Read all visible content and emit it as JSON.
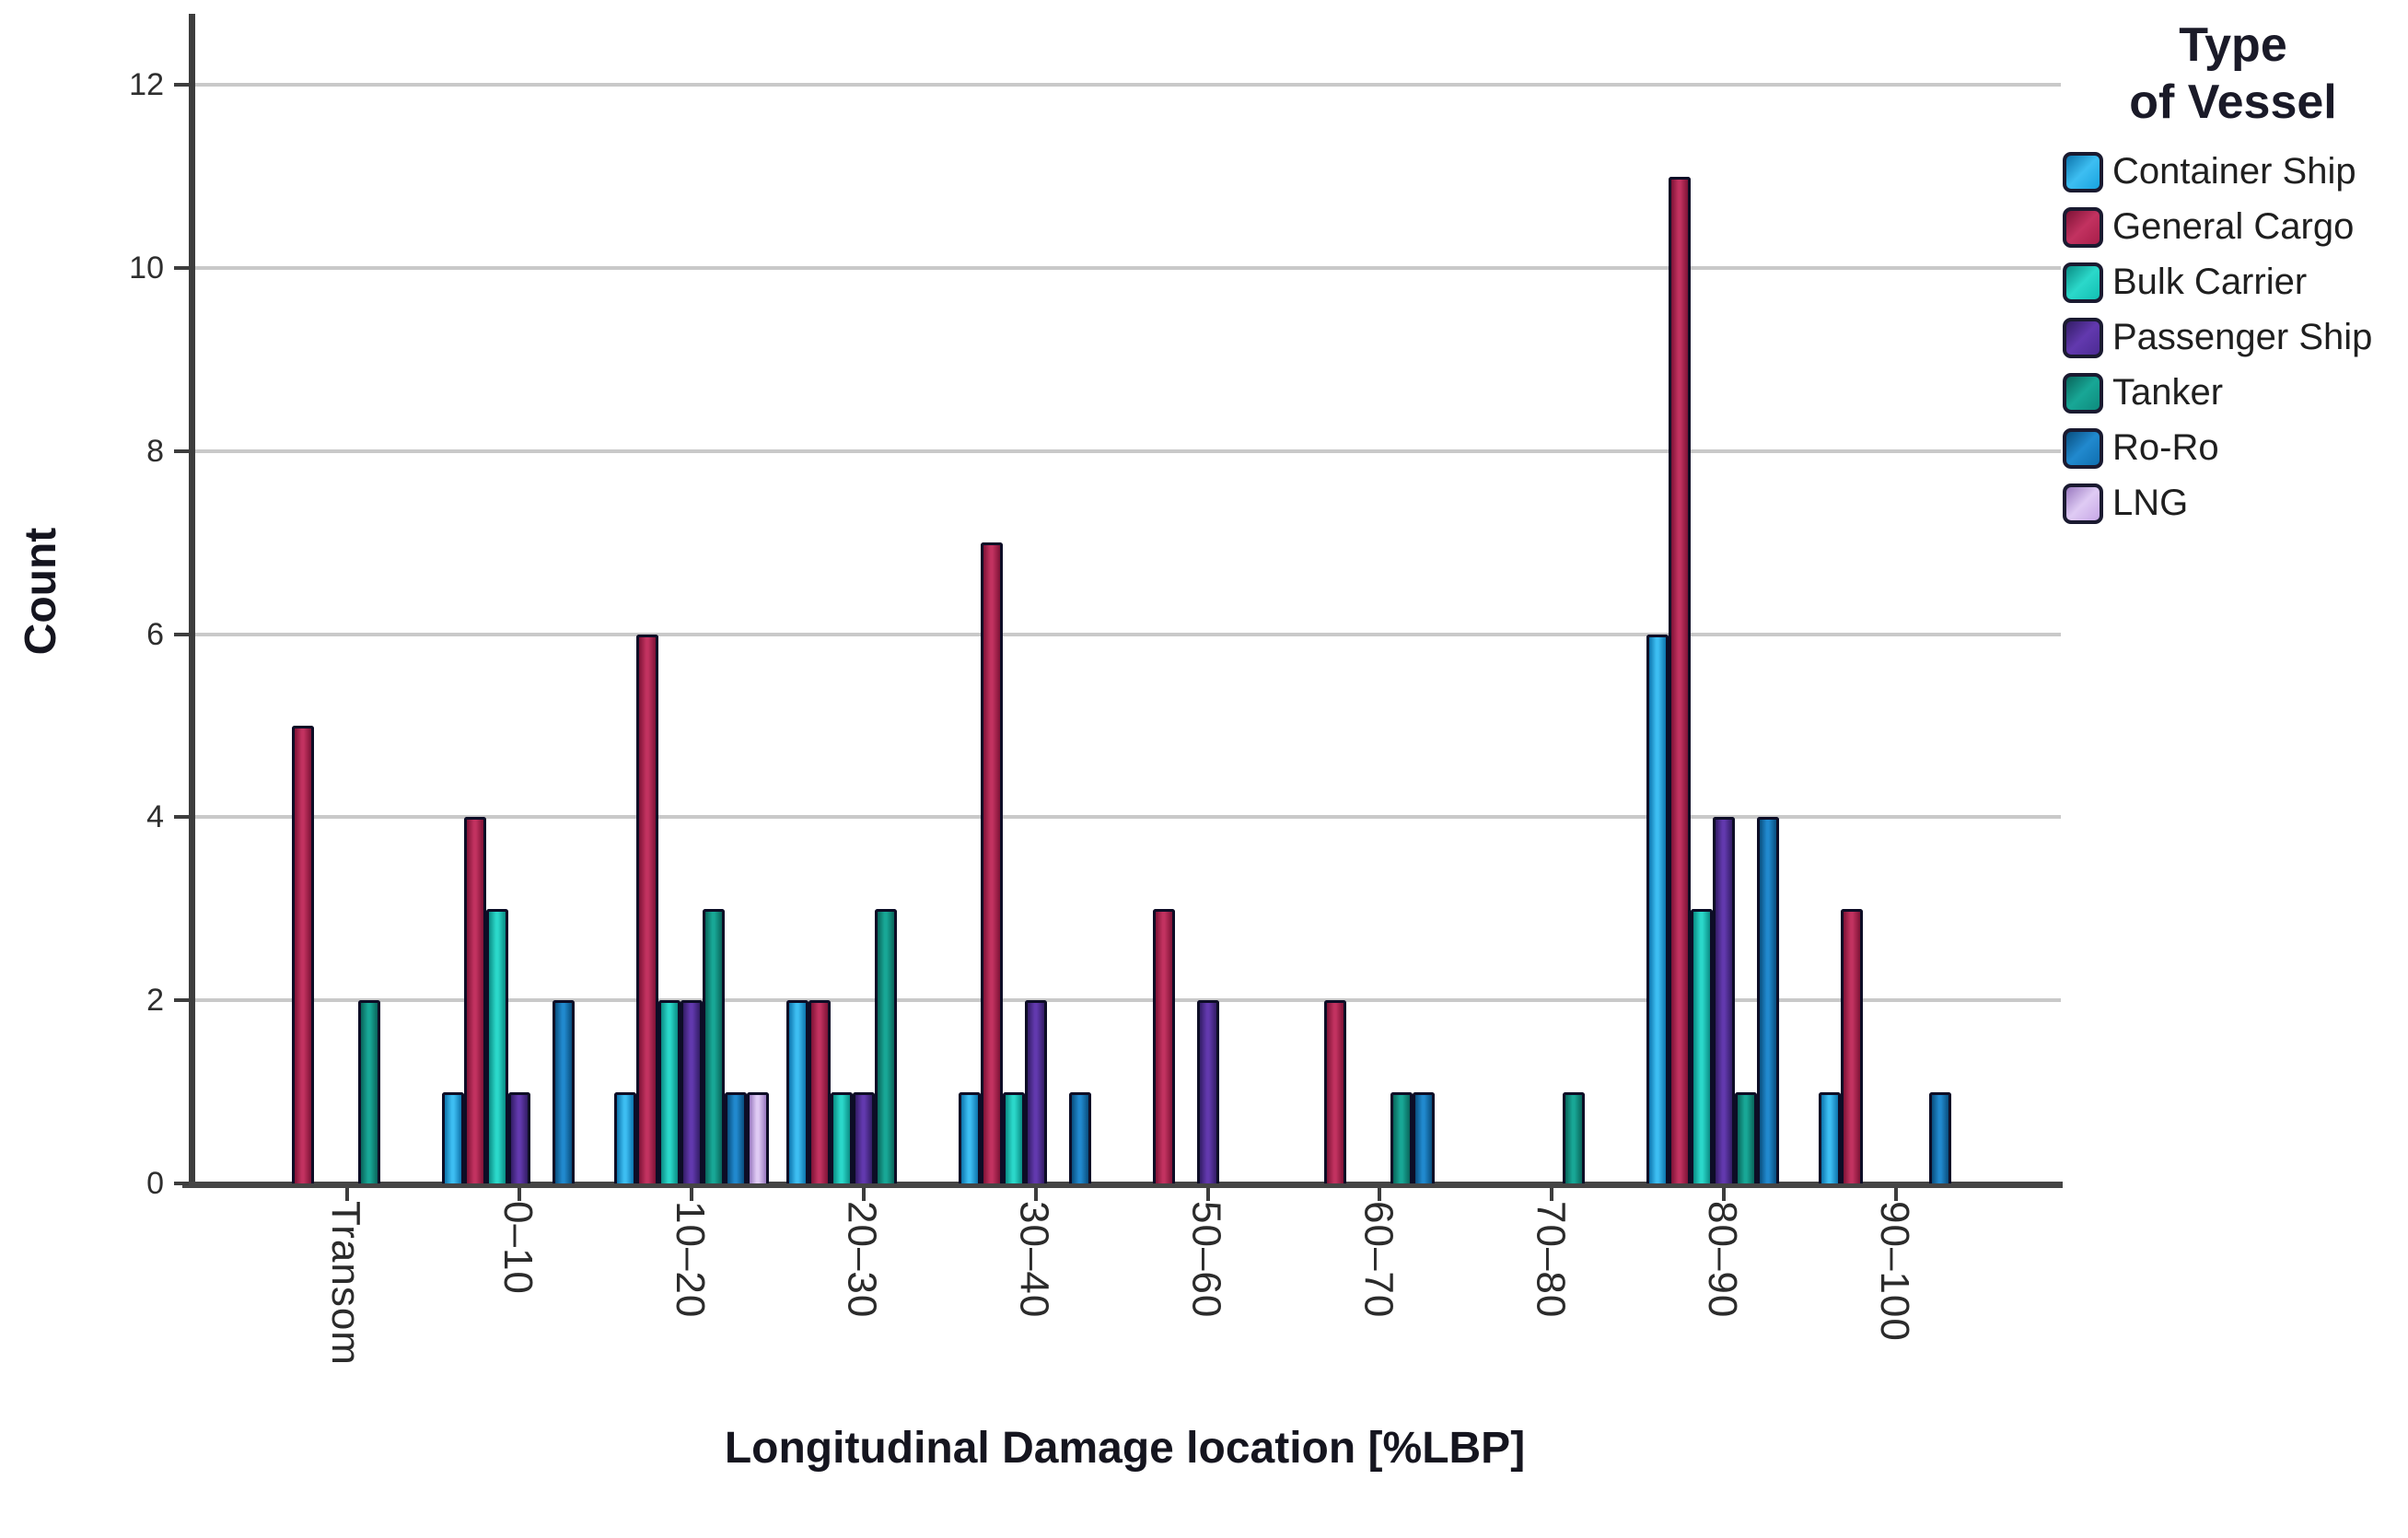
{
  "chart_data": {
    "type": "bar",
    "title": "",
    "xlabel": "Longitudinal Damage location [%LBP]",
    "ylabel": "Count",
    "legend_title_line1": "Type",
    "legend_title_line2": "of Vessel",
    "legend_position": "right",
    "grid": "horizontal",
    "ylim": [
      0,
      12.7
    ],
    "yticks": [
      0,
      2,
      4,
      6,
      8,
      10,
      12
    ],
    "categories": [
      "Transom",
      "0–10",
      "10–20",
      "20–30",
      "30–40",
      "50–60",
      "60–70",
      "70–80",
      "80–90",
      "90–100"
    ],
    "series": [
      {
        "name": "Container Ship",
        "color": "#18A3DE",
        "color_dark": "#0D74AC",
        "color_light": "#3DBEF2",
        "values": [
          0,
          1,
          1,
          2,
          1,
          0,
          0,
          0,
          6,
          1
        ]
      },
      {
        "name": "General Cargo",
        "color": "#A81E4A",
        "color_dark": "#7E1336",
        "color_light": "#C23260",
        "values": [
          5,
          4,
          6,
          2,
          7,
          3,
          2,
          0,
          11,
          3
        ]
      },
      {
        "name": "Bulk Carrier",
        "color": "#12BFB2",
        "color_dark": "#0A8C84",
        "color_light": "#2BD8CA",
        "values": [
          0,
          3,
          2,
          1,
          1,
          0,
          0,
          0,
          3,
          0
        ]
      },
      {
        "name": "Passenger Ship",
        "color": "#4C2B94",
        "color_dark": "#331D66",
        "color_light": "#6239AE",
        "values": [
          0,
          1,
          2,
          1,
          2,
          2,
          0,
          0,
          4,
          0
        ]
      },
      {
        "name": "Tanker",
        "color": "#0E8B7D",
        "color_dark": "#09655B",
        "color_light": "#18A796",
        "values": [
          2,
          0,
          3,
          3,
          0,
          0,
          1,
          1,
          1,
          0
        ]
      },
      {
        "name": "Ro-Ro",
        "color": "#0F6FB0",
        "color_dark": "#094E7E",
        "color_light": "#2189CE",
        "values": [
          0,
          2,
          1,
          0,
          1,
          0,
          1,
          0,
          4,
          1
        ]
      },
      {
        "name": "LNG",
        "color": "#C7A7E6",
        "color_dark": "#9878BF",
        "color_light": "#DFCBF4",
        "values": [
          0,
          0,
          1,
          0,
          0,
          0,
          0,
          0,
          0,
          0
        ]
      }
    ]
  }
}
